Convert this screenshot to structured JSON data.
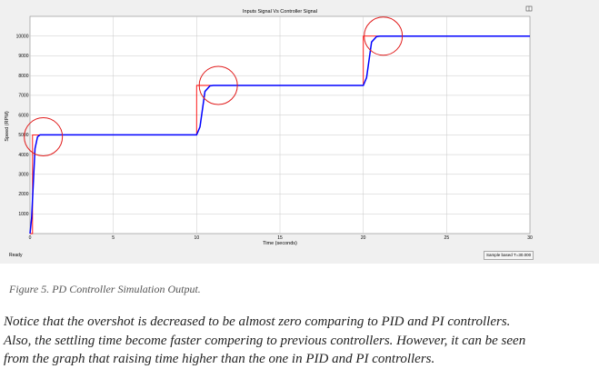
{
  "scope": {
    "status": "Ready",
    "sample_based": "Sample based",
    "time_readout": "T=30.000",
    "toolbar_icon": "scope-panel-icon"
  },
  "chart_data": {
    "type": "line",
    "title": "Inputs Signal Vs Controller Signal",
    "xlabel": "Time (seconds)",
    "ylabel": "Speed (RPM)",
    "xlim": [
      0,
      30
    ],
    "ylim": [
      0,
      11000
    ],
    "xticks": [
      0,
      5,
      10,
      15,
      20,
      25,
      30
    ],
    "yticks": [
      1000,
      2000,
      3000,
      4000,
      5000,
      6000,
      7000,
      8000,
      9000,
      10000
    ],
    "ytick_labels": [
      "1000",
      "2000",
      "3000",
      "4000",
      "5000",
      "6000",
      "7000",
      "8000",
      "9000",
      "10000"
    ],
    "grid": true,
    "series": [
      {
        "color": "#ff0000",
        "x": [
          0,
          0.15,
          0.15,
          10,
          10,
          20,
          20,
          30
        ],
        "y": [
          0,
          0,
          5000,
          5000,
          7500,
          7500,
          10000,
          10000
        ]
      },
      {
        "color": "#0000ff",
        "x": [
          0,
          0.1,
          0.3,
          0.45,
          0.6,
          10,
          10.2,
          10.5,
          10.8,
          11,
          20,
          20.2,
          20.5,
          20.8,
          21,
          30
        ],
        "y": [
          0,
          800,
          4300,
          4900,
          5000,
          5000,
          5400,
          7200,
          7480,
          7500,
          7500,
          7900,
          9700,
          9980,
          10000,
          10000
        ]
      }
    ],
    "annotations": [
      {
        "shape": "circle",
        "x": 0.8,
        "y": 4900
      },
      {
        "shape": "circle",
        "x": 11.3,
        "y": 7500
      },
      {
        "shape": "circle",
        "x": 21.2,
        "y": 10000
      }
    ]
  },
  "caption": "Figure 5. PD Controller Simulation Output.",
  "paragraph": {
    "line1": "Notice that the overshot is decreased to be almost zero comparing to PID and PI controllers.",
    "line2": "Also, the settling time become faster compering to previous controllers. However, it can be seen",
    "line3": "from the graph that raising time higher than the one in PID and PI controllers."
  }
}
